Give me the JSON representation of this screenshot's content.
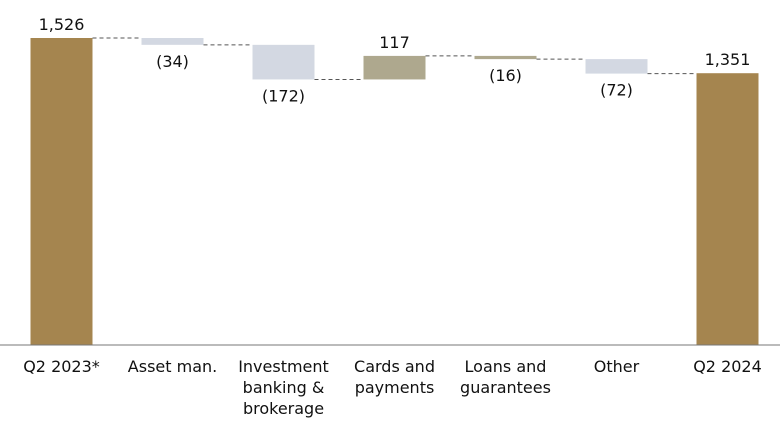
{
  "chart_data": {
    "type": "waterfall",
    "categories": [
      "Q2 2023*",
      "Asset man.",
      "Investment banking & brokerage",
      "Cards and payments",
      "Loans and guarantees",
      "Other",
      "Q2 2024"
    ],
    "values": [
      1526,
      -34,
      -172,
      117,
      -16,
      -72,
      1351
    ],
    "value_labels": [
      "1,526",
      "(34)",
      "(172)",
      "117",
      "(16)",
      "(72)",
      "1,351"
    ],
    "colors": [
      "#a5854f",
      "#d3d8e2",
      "#d3d8e2",
      "#aea88e",
      "#aea88e",
      "#d3d8e2",
      "#a5854f"
    ]
  }
}
